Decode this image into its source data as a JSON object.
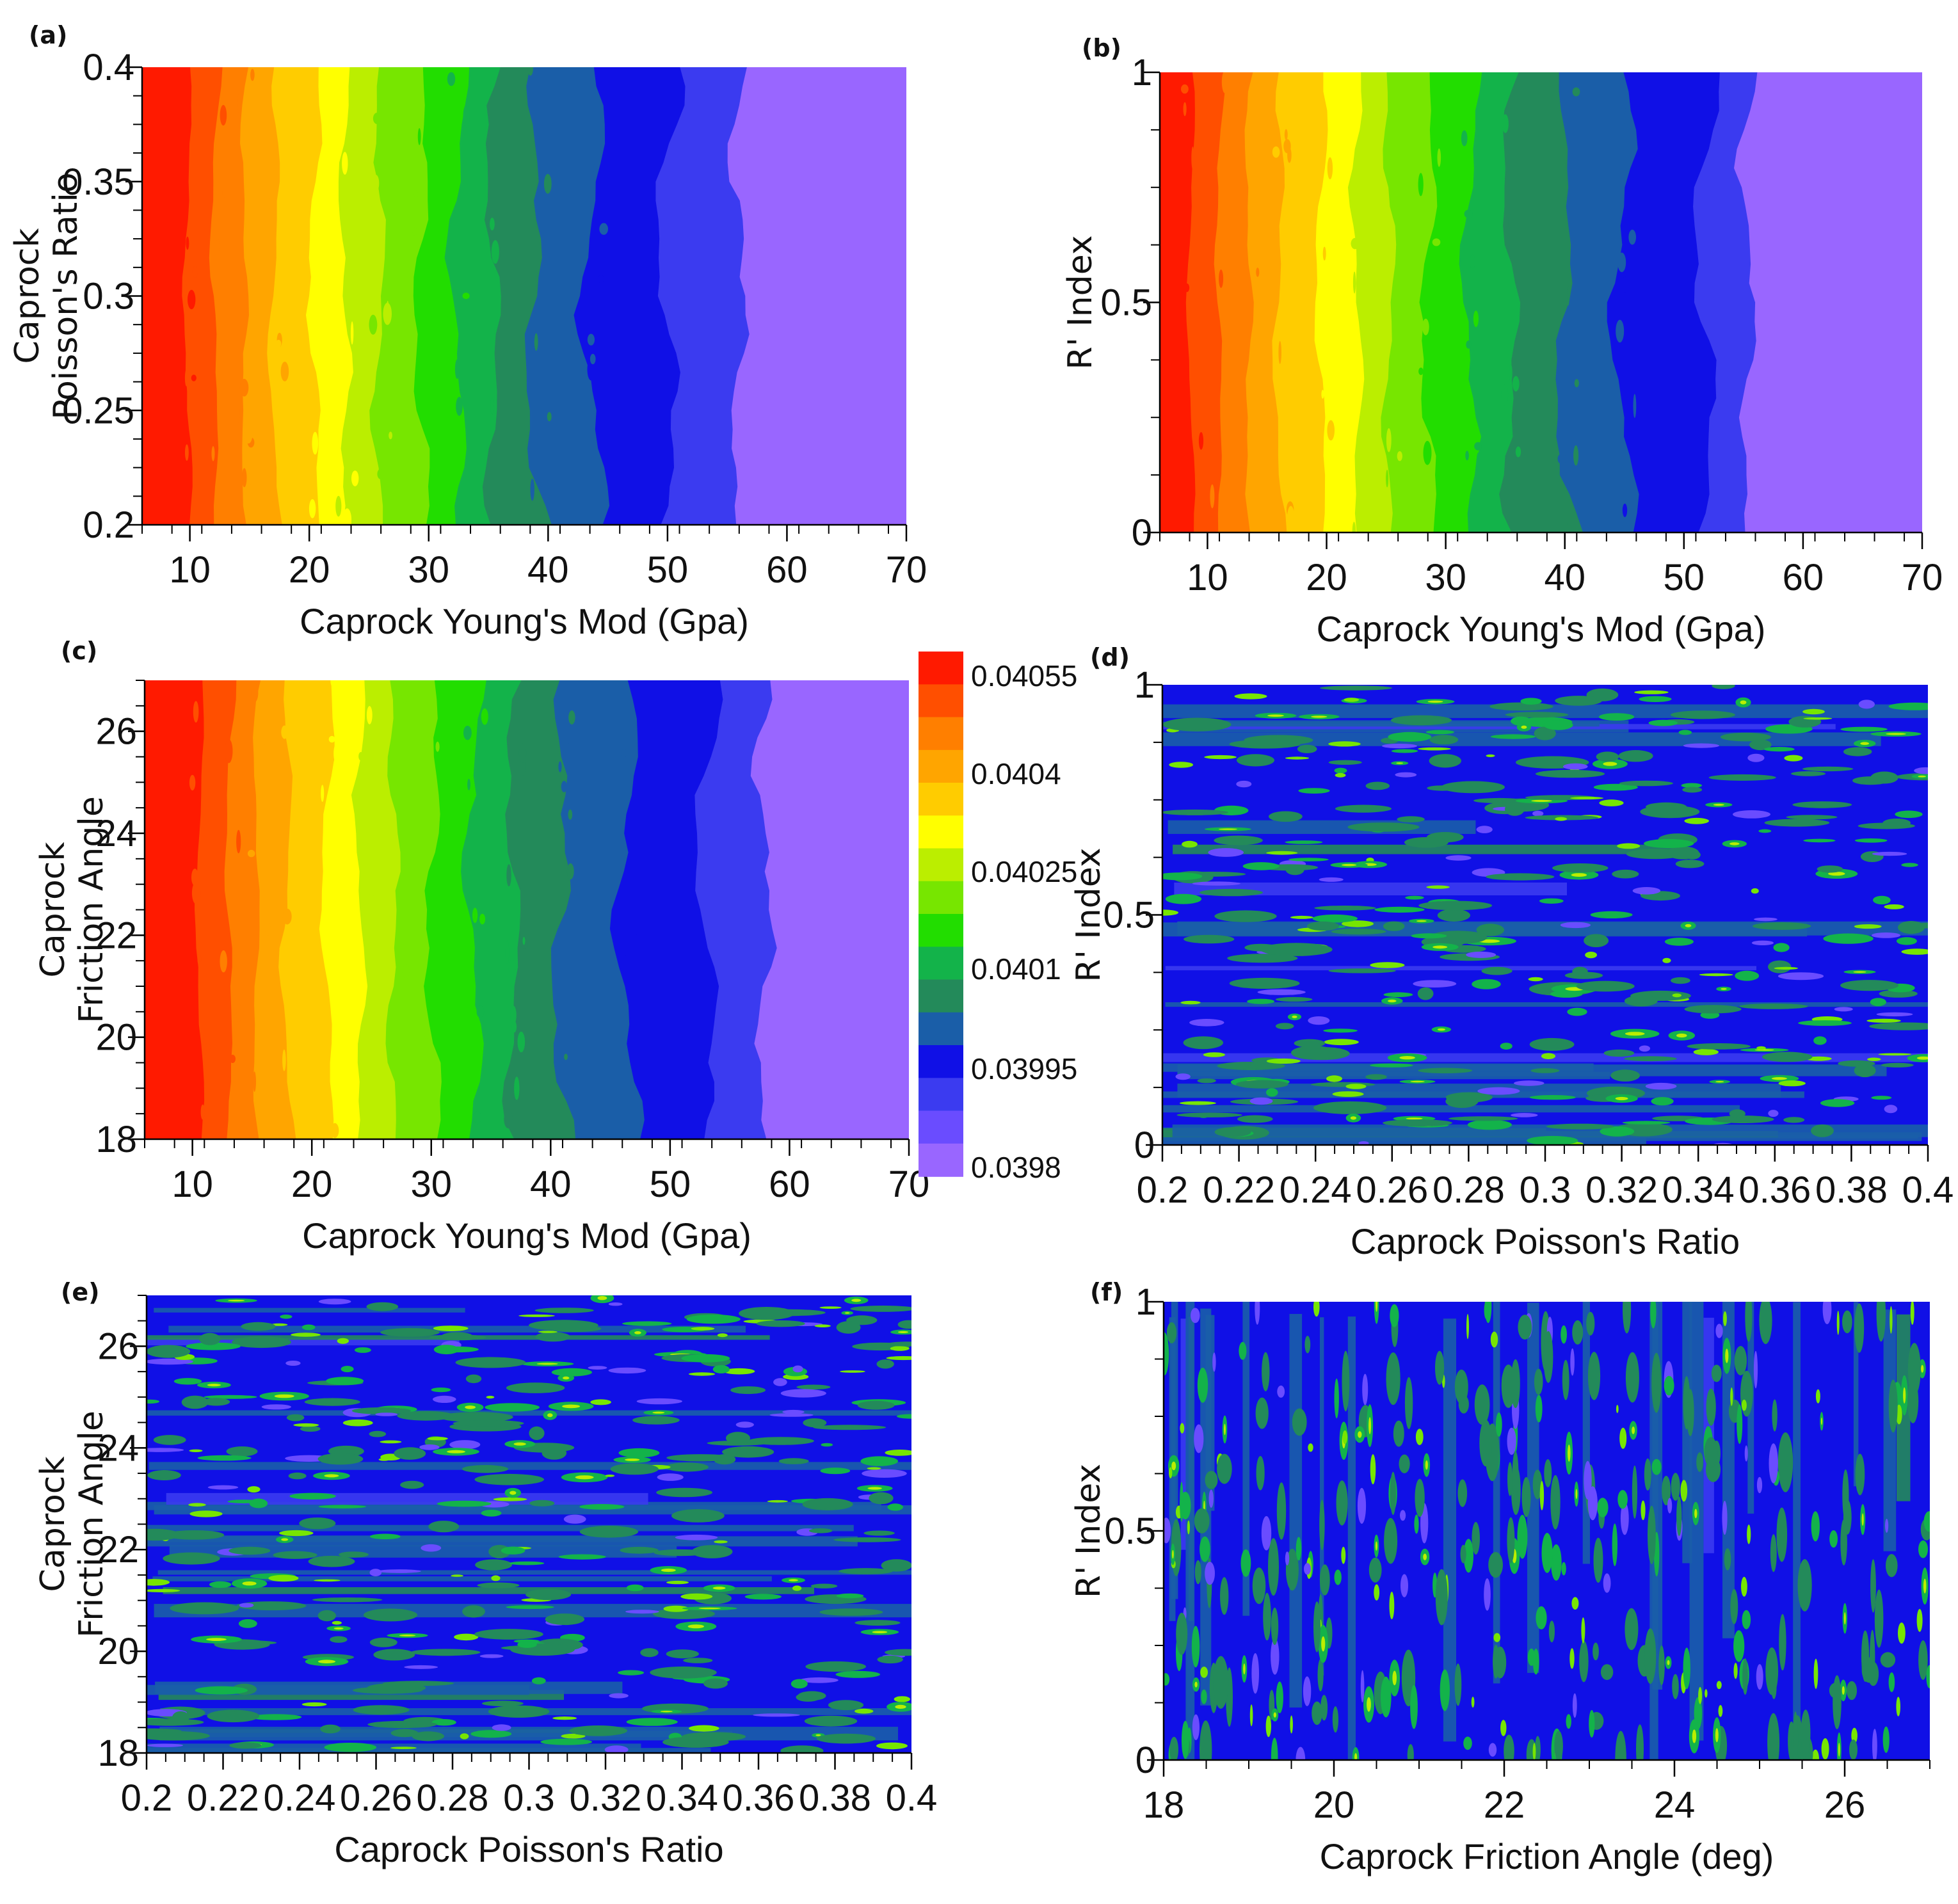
{
  "colorscale": {
    "levels": [
      "#9966ff",
      "#6a4cff",
      "#3b3bf0",
      "#1010e6",
      "#1a5ea8",
      "#238a5a",
      "#13b34a",
      "#22dd00",
      "#77e600",
      "#bbee00",
      "#ffff00",
      "#ffcc00",
      "#ffa500",
      "#ff7f00",
      "#ff4f00",
      "#ff1a00"
    ],
    "ticks": [
      "0.04055",
      "0.0404",
      "0.04025",
      "0.0401",
      "0.03995",
      "0.0398"
    ]
  },
  "chart_data": [
    {
      "panel": "(a)",
      "type": "heatmap",
      "pattern": "youngs",
      "xlabel": "Caprock Young's Mod (Gpa)",
      "ylabel": [
        "Caprock",
        "Poisson's Ratio"
      ],
      "xlim": [
        6,
        70
      ],
      "ylim": [
        0.2,
        0.4
      ],
      "xticks": [
        "10",
        "20",
        "30",
        "40",
        "50",
        "60",
        "70"
      ],
      "yticks": [
        "0.2",
        "0.25",
        "0.3",
        "0.35",
        "0.4"
      ],
      "boundaries": [
        10,
        12.3,
        14.8,
        17.3,
        20.6,
        23.2,
        26.1,
        29.6,
        32.6,
        35.6,
        39.3,
        44.2,
        50.5,
        56.5
      ]
    },
    {
      "panel": "(b)",
      "type": "heatmap",
      "pattern": "youngs",
      "xlabel": "Caprock Young's Mod (Gpa)",
      "ylabel": [
        "R' Index"
      ],
      "xlim": [
        6,
        70
      ],
      "ylim": [
        0,
        1
      ],
      "xticks": [
        "10",
        "20",
        "30",
        "40",
        "50",
        "60",
        "70"
      ],
      "yticks": [
        "0",
        "0.5",
        "1"
      ],
      "boundaries": [
        8.8,
        11.2,
        13.7,
        16.2,
        19.7,
        22.8,
        25.5,
        28.7,
        32.2,
        35.7,
        40.5,
        45.3,
        52.3,
        56
      ]
    },
    {
      "panel": "(c)",
      "type": "heatmap",
      "pattern": "youngs",
      "xlabel": "Caprock Young's Mod (Gpa)",
      "ylabel": [
        "Caprock",
        "Friction Angle"
      ],
      "xlim": [
        6,
        70
      ],
      "ylim": [
        18,
        27
      ],
      "xticks": [
        "10",
        "20",
        "30",
        "40",
        "50",
        "60",
        "70"
      ],
      "yticks": [
        "18",
        "20",
        "22",
        "24",
        "26"
      ],
      "boundaries": [
        10.8,
        13.3,
        15.6,
        18.1,
        21.5,
        24.3,
        27.1,
        30.3,
        33.7,
        37.1,
        41.4,
        46.8,
        53.6,
        58.5
      ]
    },
    {
      "panel": "(d)",
      "type": "heatmap",
      "pattern": "noise-h",
      "xlabel": "Caprock Poisson's Ratio",
      "ylabel": [
        "R' Index"
      ],
      "xlim": [
        0.2,
        0.4
      ],
      "ylim": [
        0,
        1
      ],
      "xticks": [
        "0.2",
        "0.22",
        "0.24",
        "0.26",
        "0.28",
        "0.3",
        "0.32",
        "0.34",
        "0.36",
        "0.38",
        "0.4"
      ],
      "yticks": [
        "0",
        "0.5",
        "1"
      ]
    },
    {
      "panel": "(e)",
      "type": "heatmap",
      "pattern": "noise-h",
      "xlabel": "Caprock Poisson's Ratio",
      "ylabel": [
        "Caprock",
        "Friction Angle"
      ],
      "xlim": [
        0.2,
        0.4
      ],
      "ylim": [
        18,
        27
      ],
      "xticks": [
        "0.2",
        "0.22",
        "0.24",
        "0.26",
        "0.28",
        "0.3",
        "0.32",
        "0.34",
        "0.36",
        "0.38",
        "0.4"
      ],
      "yticks": [
        "18",
        "20",
        "22",
        "24",
        "26"
      ]
    },
    {
      "panel": "(f)",
      "type": "heatmap",
      "pattern": "noise-v",
      "xlabel": "Caprock Friction Angle (deg)",
      "ylabel": [
        "R' Index"
      ],
      "xlim": [
        18,
        27
      ],
      "ylim": [
        0,
        1
      ],
      "xticks": [
        "18",
        "20",
        "22",
        "24",
        "26"
      ],
      "yticks": [
        "0",
        "0.5",
        "1"
      ]
    }
  ]
}
